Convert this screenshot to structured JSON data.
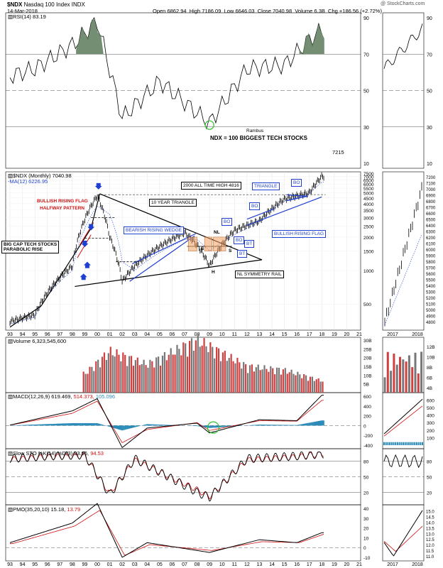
{
  "header": {
    "symbol": "$NDX",
    "name": "Nasdaq 100 Index",
    "exchange": "INDX",
    "date": "14-Mar-2018",
    "open_label": "Open",
    "open": "6862.94",
    "high_label": "High",
    "high": "7186.09",
    "low_label": "Low",
    "low": "6646.03",
    "close_label": "Close",
    "close": "7040.98",
    "volume_label": "Volume",
    "volume": "6.3B",
    "change_label": "Chg",
    "change": "+186.56 (+2.72%)",
    "watermark": "@ StockCharts.com"
  },
  "panels": {
    "rsi": {
      "label": "RSI(14) 83.19",
      "ticks": [
        "90",
        "70",
        "50",
        "30",
        "10"
      ],
      "right_ticks": [
        "90",
        "70",
        "50",
        "30",
        "10"
      ]
    },
    "price": {
      "label1": "$NDX (Monthly) 7040.98",
      "label2": "MA(12) 6226.95",
      "ticks": [
        "7500",
        "7000",
        "6500",
        "6000",
        "5500",
        "5000",
        "4500",
        "4000",
        "3500",
        "3000",
        "2500",
        "2000",
        "1500",
        "1000",
        "500"
      ],
      "right_ticks": [
        "7200",
        "7100",
        "7000",
        "6900",
        "6800",
        "6700",
        "6600",
        "6500",
        "6400",
        "6300",
        "6200",
        "6100",
        "6000",
        "5900",
        "5800",
        "5700",
        "5600",
        "5500",
        "5400",
        "5300",
        "5200",
        "5100",
        "5000",
        "4900",
        "4800"
      ],
      "value_label": "7215"
    },
    "volume": {
      "label": "Volume 6,323,545,600",
      "ticks": [
        "30B",
        "25B",
        "20B",
        "15B",
        "10B",
        "5B"
      ],
      "right_ticks": [
        "12B",
        "10B",
        "8B",
        "6B",
        "4B"
      ]
    },
    "macd": {
      "label": "MACD(12,26,9)",
      "v1": "619.469,",
      "v2": "514.373,",
      "v3": "105.096",
      "ticks": [
        "600",
        "400",
        "200",
        "0",
        "-200",
        "-400"
      ],
      "right_ticks": [
        "600",
        "500",
        "400",
        "300",
        "200",
        "100"
      ]
    },
    "sto": {
      "label": "Slow STO %K(14) %D(3)",
      "v1": "93.96,",
      "v2": "94.53",
      "ticks": [
        "80",
        "50",
        "20"
      ],
      "right_ticks": [
        "80",
        "50",
        "20"
      ]
    },
    "pmo": {
      "label": "PMO(35,20,10)",
      "v1": "15.18,",
      "v2": "13.79",
      "ticks": [
        "40",
        "30",
        "20",
        "10",
        "0",
        "-10"
      ],
      "right_ticks": [
        "15.0",
        "14.5",
        "14.0",
        "13.5",
        "13.0",
        "12.5",
        "12.0",
        "11.5",
        "11.0"
      ]
    }
  },
  "x_axis": {
    "labels": [
      "93",
      "94",
      "95",
      "96",
      "97",
      "98",
      "99",
      "00",
      "01",
      "02",
      "03",
      "04",
      "05",
      "06",
      "07",
      "08",
      "09",
      "10",
      "11",
      "12",
      "13",
      "14",
      "15",
      "16",
      "17",
      "18",
      "19",
      "20",
      "21"
    ],
    "right_labels": [
      "2017",
      "2018"
    ]
  },
  "annotations": {
    "rambus": "Rambus",
    "ndx_note": "NDX = 100 BIGGEST TECH STOCKS",
    "bullish_flag_1": "BULLISH RISING FLAG",
    "bullish_flag_2": "HALFWAY PATTERN",
    "ten_year_triangle": "10 YEAR TRIANGLE",
    "all_time_high": "2000 ALL TIME HIGH 4816",
    "triangle": "TRIANGLE",
    "bo1": "BO",
    "bo2": "BO",
    "bo3": "BO",
    "bo4": "BO",
    "bt1": "BT",
    "bt2": "BT",
    "bearish_wedge": "BEARISH RISING WEDGE",
    "big_cap_1": "BIG CAP TECH STOCKS",
    "big_cap_2": "PARABOLIC RISE",
    "bullish_rising_flag": "BULLISH RISING FLAG",
    "nl": "NL",
    "s1": "S",
    "s2": "S",
    "h": "H",
    "nl_symmetry": "NL SYMMETRY RAIL"
  },
  "chart_data": [
    {
      "type": "line",
      "title": "$NDX (Monthly) 7040.98",
      "scale": "log",
      "x": [
        "1993",
        "1995",
        "1998",
        "2000",
        "2001",
        "2002",
        "2003",
        "2007",
        "2008",
        "2009",
        "2011",
        "2013",
        "2015",
        "2017",
        "2018"
      ],
      "series": [
        {
          "name": "$NDX",
          "values": [
            350,
            400,
            1100,
            4700,
            2000,
            800,
            1100,
            2200,
            1700,
            1100,
            2300,
            2800,
            4400,
            5000,
            7040
          ]
        },
        {
          "name": "MA(12)",
          "values": [
            330,
            380,
            1000,
            3800,
            3200,
            1200,
            1000,
            1900,
            1900,
            1500,
            2100,
            2700,
            4200,
            4900,
            6227
          ]
        }
      ],
      "ylim": [
        300,
        7500
      ]
    },
    {
      "type": "line",
      "title": "RSI(14) 83.19",
      "x": [
        "1993",
        "1995",
        "1998",
        "2000",
        "2002",
        "2005",
        "2009",
        "2012",
        "2015",
        "2017",
        "2018"
      ],
      "series": [
        {
          "name": "RSI(14)",
          "values": [
            58,
            62,
            75,
            88,
            35,
            55,
            32,
            62,
            64,
            78,
            83.19
          ]
        }
      ],
      "ylim": [
        10,
        90
      ]
    },
    {
      "type": "bar",
      "title": "Volume 6,323,545,600",
      "x": [
        "1999",
        "2001",
        "2004",
        "2008",
        "2012",
        "2015",
        "2018"
      ],
      "values": [
        10,
        22,
        15,
        28,
        14,
        12,
        6.3
      ],
      "ylabel": "B",
      "ylim": [
        0,
        30
      ]
    },
    {
      "type": "line",
      "title": "MACD(12,26,9)",
      "x": [
        "1993",
        "1998",
        "2000",
        "2002",
        "2004",
        "2008",
        "2009",
        "2013",
        "2016",
        "2018"
      ],
      "series": [
        {
          "name": "MACD",
          "values": [
            10,
            300,
            550,
            -450,
            -50,
            50,
            -150,
            120,
            100,
            619.469
          ]
        },
        {
          "name": "Signal",
          "values": [
            8,
            250,
            500,
            -350,
            -80,
            60,
            -100,
            100,
            90,
            514.373
          ]
        },
        {
          "name": "Histogram",
          "values": [
            2,
            50,
            50,
            -100,
            30,
            -10,
            -50,
            20,
            10,
            105.096
          ]
        }
      ],
      "ylim": [
        -400,
        600
      ]
    },
    {
      "type": "line",
      "title": "Slow STO %K(14) %D(3)",
      "x": [
        "1993",
        "1996",
        "1999",
        "2001",
        "2003",
        "2008",
        "2009",
        "2012",
        "2016",
        "2018"
      ],
      "series": [
        {
          "name": "%K(14)",
          "values": [
            85,
            90,
            92,
            15,
            85,
            20,
            10,
            85,
            90,
            93.96
          ]
        },
        {
          "name": "%D(3)",
          "values": [
            83,
            88,
            90,
            18,
            82,
            25,
            12,
            82,
            88,
            94.53
          ]
        }
      ],
      "ylim": [
        0,
        100
      ]
    },
    {
      "type": "line",
      "title": "PMO(35,20,10)",
      "x": [
        "1993",
        "1998",
        "2000",
        "2002",
        "2004",
        "2009",
        "2013",
        "2016",
        "2018"
      ],
      "series": [
        {
          "name": "PMO",
          "values": [
            5,
            25,
            45,
            -10,
            5,
            -5,
            8,
            5,
            15.18
          ]
        },
        {
          "name": "Signal",
          "values": [
            4,
            22,
            38,
            -8,
            3,
            -3,
            6,
            5,
            13.79
          ]
        }
      ],
      "ylim": [
        -10,
        40
      ]
    }
  ]
}
